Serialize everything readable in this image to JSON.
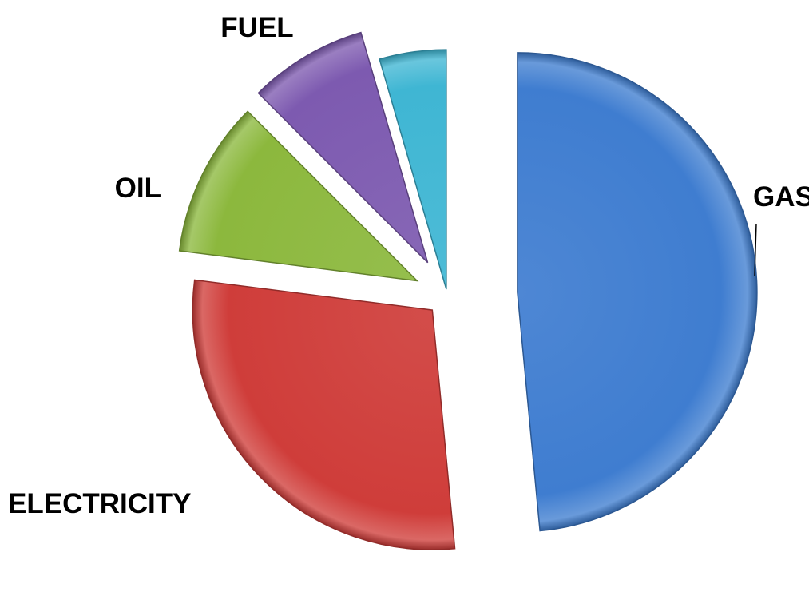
{
  "chart_data": {
    "type": "pie",
    "exploded": true,
    "start": "12 o'clock, clockwise",
    "slices": [
      {
        "label": "GAS",
        "value": 48.5,
        "color": "#3f7dd0"
      },
      {
        "label": "ELECTRICITY",
        "value": 28.5,
        "color": "#cf3d3a"
      },
      {
        "label": "OIL",
        "value": 10.5,
        "color": "#8cb83d"
      },
      {
        "label": "FUEL",
        "value": 8,
        "color": "#7d5ab0"
      },
      {
        "label": "",
        "value": 4.5,
        "color": "#3fb6d3"
      }
    ],
    "legend": "none"
  }
}
